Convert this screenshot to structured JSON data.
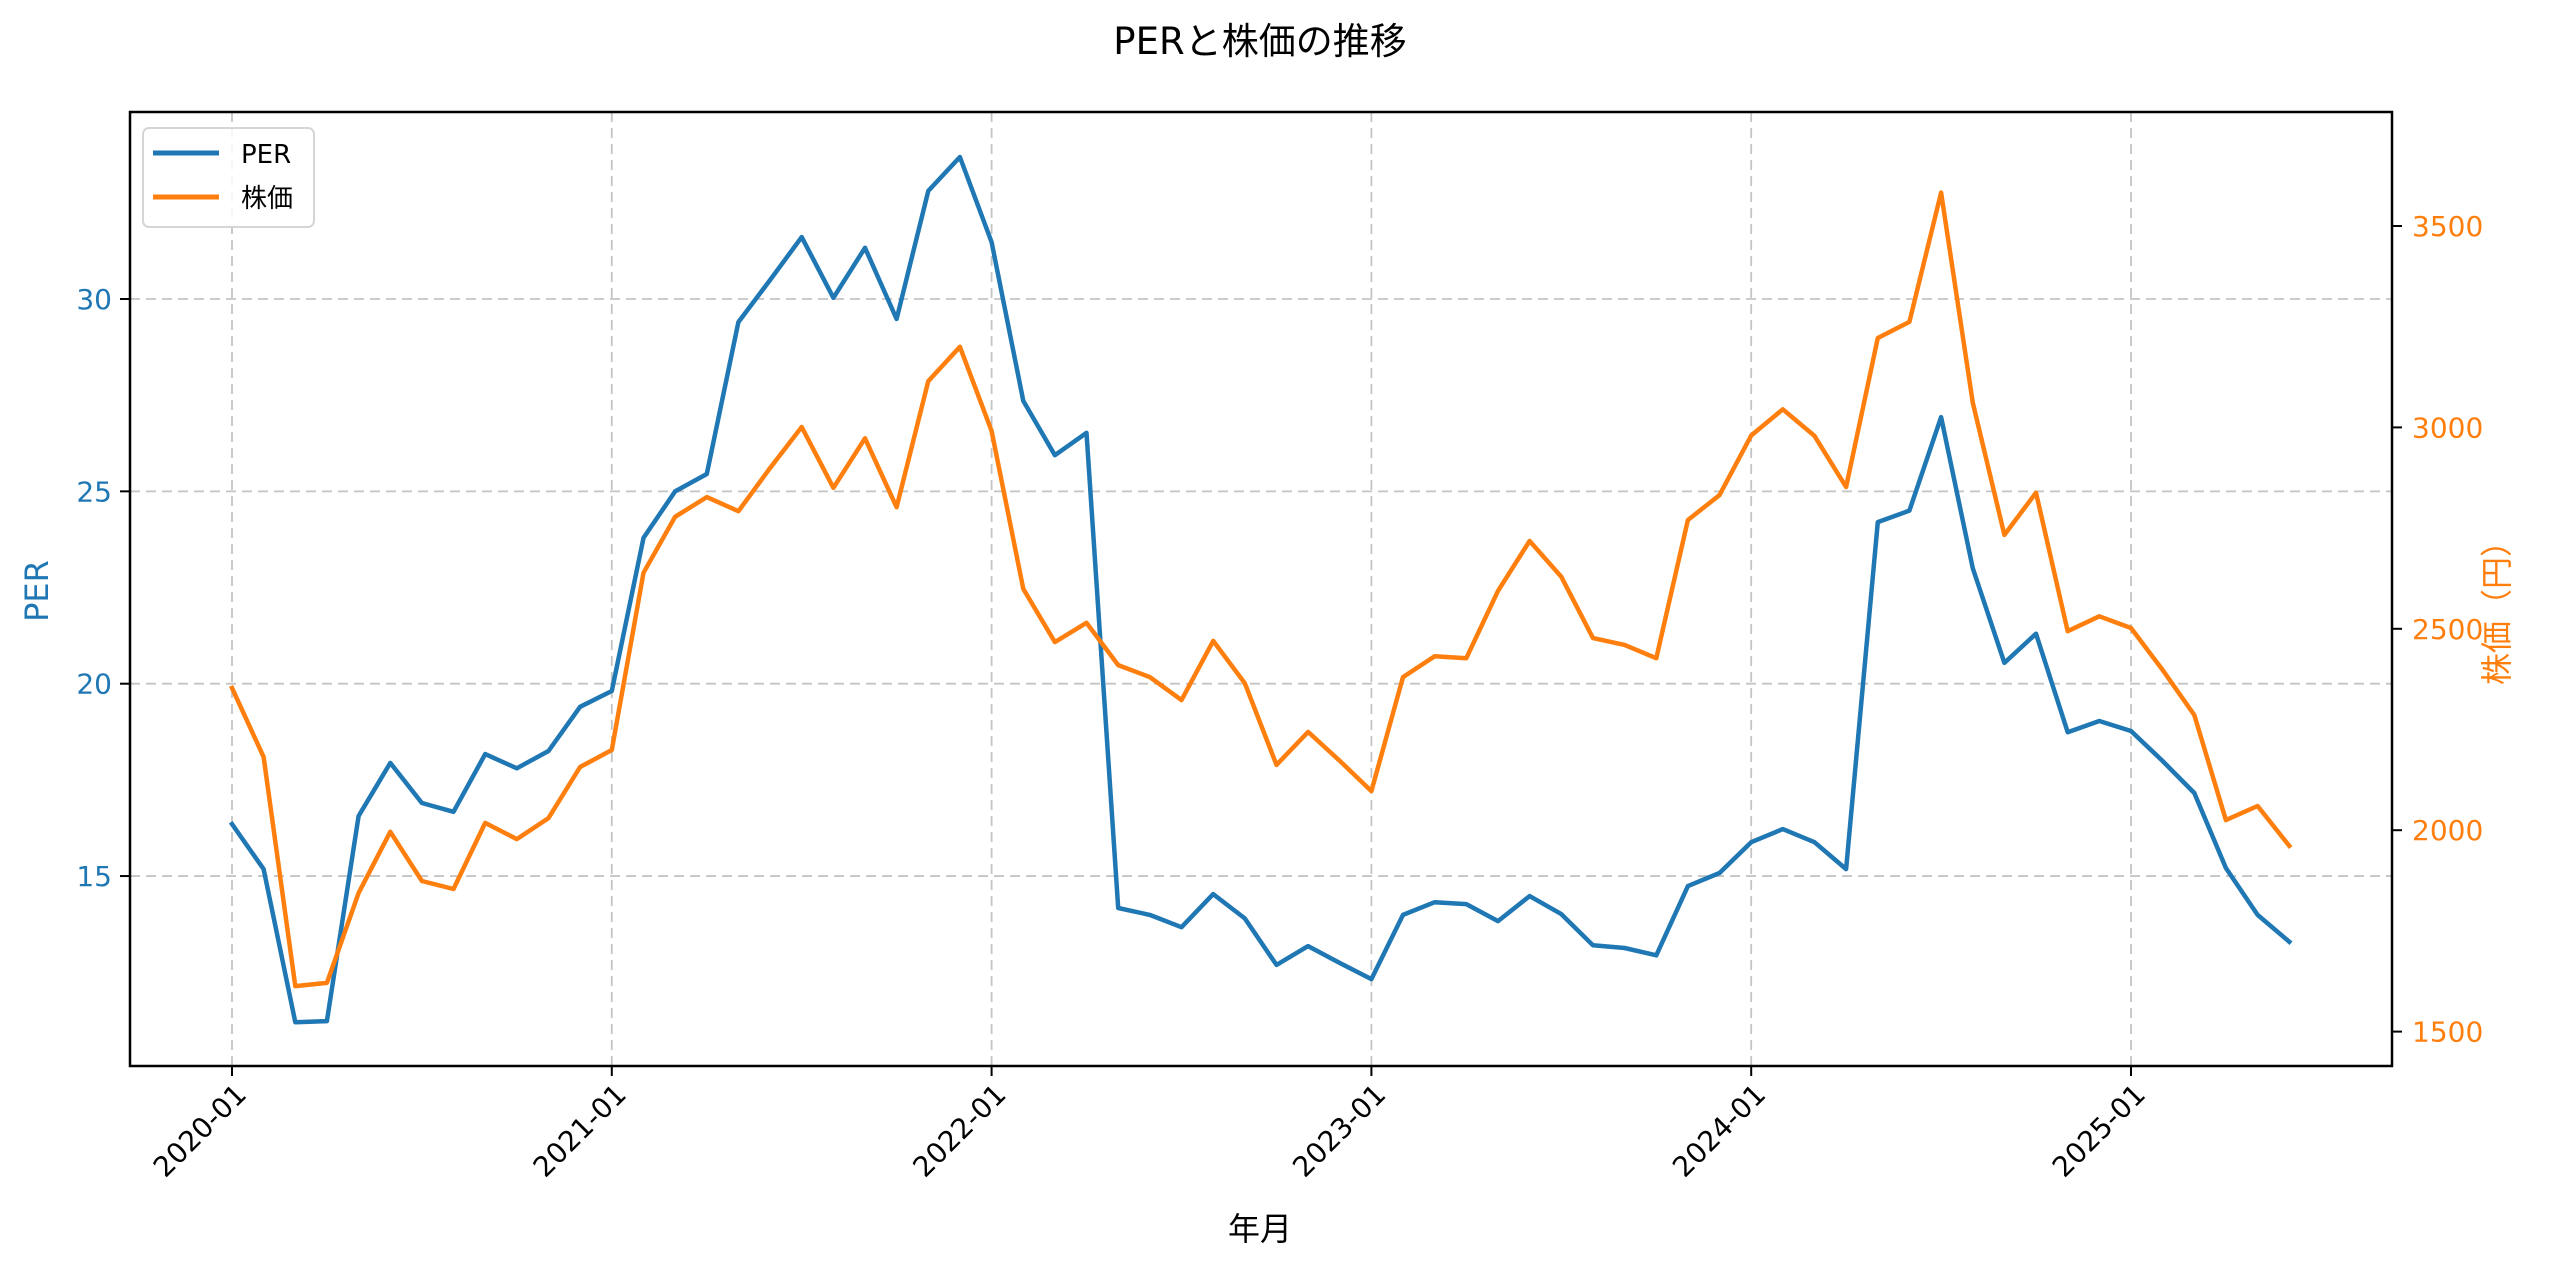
{
  "chart_data": {
    "type": "line",
    "title": "PERと株価の推移",
    "xlabel": "年月",
    "ylabel": "PER",
    "ylabel_right": "株価（円）",
    "x_ticks": [
      "2020-01",
      "2021-01",
      "2022-01",
      "2023-01",
      "2024-01",
      "2025-01"
    ],
    "y_ticks_left": [
      15,
      20,
      25,
      30
    ],
    "y_ticks_right": [
      1500,
      2000,
      2500,
      3000,
      3500
    ],
    "ylim_left": [
      10.0,
      34.6
    ],
    "ylim_right": [
      1450,
      3720
    ],
    "grid": true,
    "legend_position": "upper left",
    "x": [
      "2020-01",
      "2020-02",
      "2020-03",
      "2020-04",
      "2020-05",
      "2020-06",
      "2020-07",
      "2020-08",
      "2020-09",
      "2020-10",
      "2020-11",
      "2020-12",
      "2021-01",
      "2021-02",
      "2021-03",
      "2021-04",
      "2021-05",
      "2021-06",
      "2021-07",
      "2021-08",
      "2021-09",
      "2021-10",
      "2021-11",
      "2021-12",
      "2022-01",
      "2022-02",
      "2022-03",
      "2022-04",
      "2022-05",
      "2022-06",
      "2022-07",
      "2022-08",
      "2022-09",
      "2022-10",
      "2022-11",
      "2022-12",
      "2023-01",
      "2023-02",
      "2023-03",
      "2023-04",
      "2023-05",
      "2023-06",
      "2023-07",
      "2023-08",
      "2023-09",
      "2023-10",
      "2023-11",
      "2023-12",
      "2024-01",
      "2024-02",
      "2024-03",
      "2024-04",
      "2024-05",
      "2024-06",
      "2024-07",
      "2024-08",
      "2024-09",
      "2024-10",
      "2024-11",
      "2024-12",
      "2025-01",
      "2025-02",
      "2025-03",
      "2025-04",
      "2025-05",
      "2025-06"
    ],
    "series": [
      {
        "name": "PER",
        "axis": "left",
        "color": "#1f77b4",
        "values": [
          16.35,
          15.18,
          11.2,
          11.23,
          16.56,
          17.94,
          16.9,
          16.67,
          18.17,
          17.8,
          18.25,
          19.4,
          19.81,
          23.79,
          25.0,
          25.45,
          29.4,
          30.49,
          31.61,
          30.03,
          31.33,
          29.48,
          32.81,
          33.69,
          31.48,
          27.35,
          25.94,
          26.52,
          14.17,
          13.99,
          13.67,
          14.53,
          13.9,
          12.69,
          13.18,
          12.74,
          12.32,
          13.99,
          14.32,
          14.27,
          13.83,
          14.48,
          14.01,
          13.2,
          13.13,
          12.94,
          14.74,
          15.08,
          15.88,
          16.22,
          15.88,
          15.18,
          24.2,
          24.5,
          26.93,
          23.0,
          20.54,
          21.3,
          18.74,
          19.03,
          18.77,
          17.99,
          17.16,
          15.21,
          13.99,
          13.29
        ]
      },
      {
        "name": "株価",
        "axis": "right",
        "color": "#ff7f0e",
        "values": [
          2353,
          2182,
          1613,
          1621,
          1844,
          1996,
          1874,
          1854,
          2018,
          1978,
          2030,
          2157,
          2199,
          2639,
          2778,
          2827,
          2792,
          2899,
          3001,
          2850,
          2973,
          2802,
          3115,
          3200,
          2991,
          2599,
          2467,
          2515,
          2410,
          2380,
          2323,
          2470,
          2365,
          2162,
          2244,
          2172,
          2097,
          2380,
          2432,
          2427,
          2594,
          2718,
          2629,
          2477,
          2460,
          2427,
          2770,
          2832,
          2980,
          3045,
          2979,
          2852,
          3222,
          3262,
          3583,
          3061,
          2733,
          2838,
          2494,
          2531,
          2502,
          2398,
          2286,
          2025,
          2060,
          1961
        ]
      }
    ]
  },
  "legend": {
    "items": [
      {
        "label": "PER",
        "color": "#1f77b4"
      },
      {
        "label": "株価",
        "color": "#ff7f0e"
      }
    ]
  },
  "colors": {
    "per": "#1f77b4",
    "price": "#ff7f0e",
    "grid": "#b0b0b0",
    "axis": "#000000"
  }
}
